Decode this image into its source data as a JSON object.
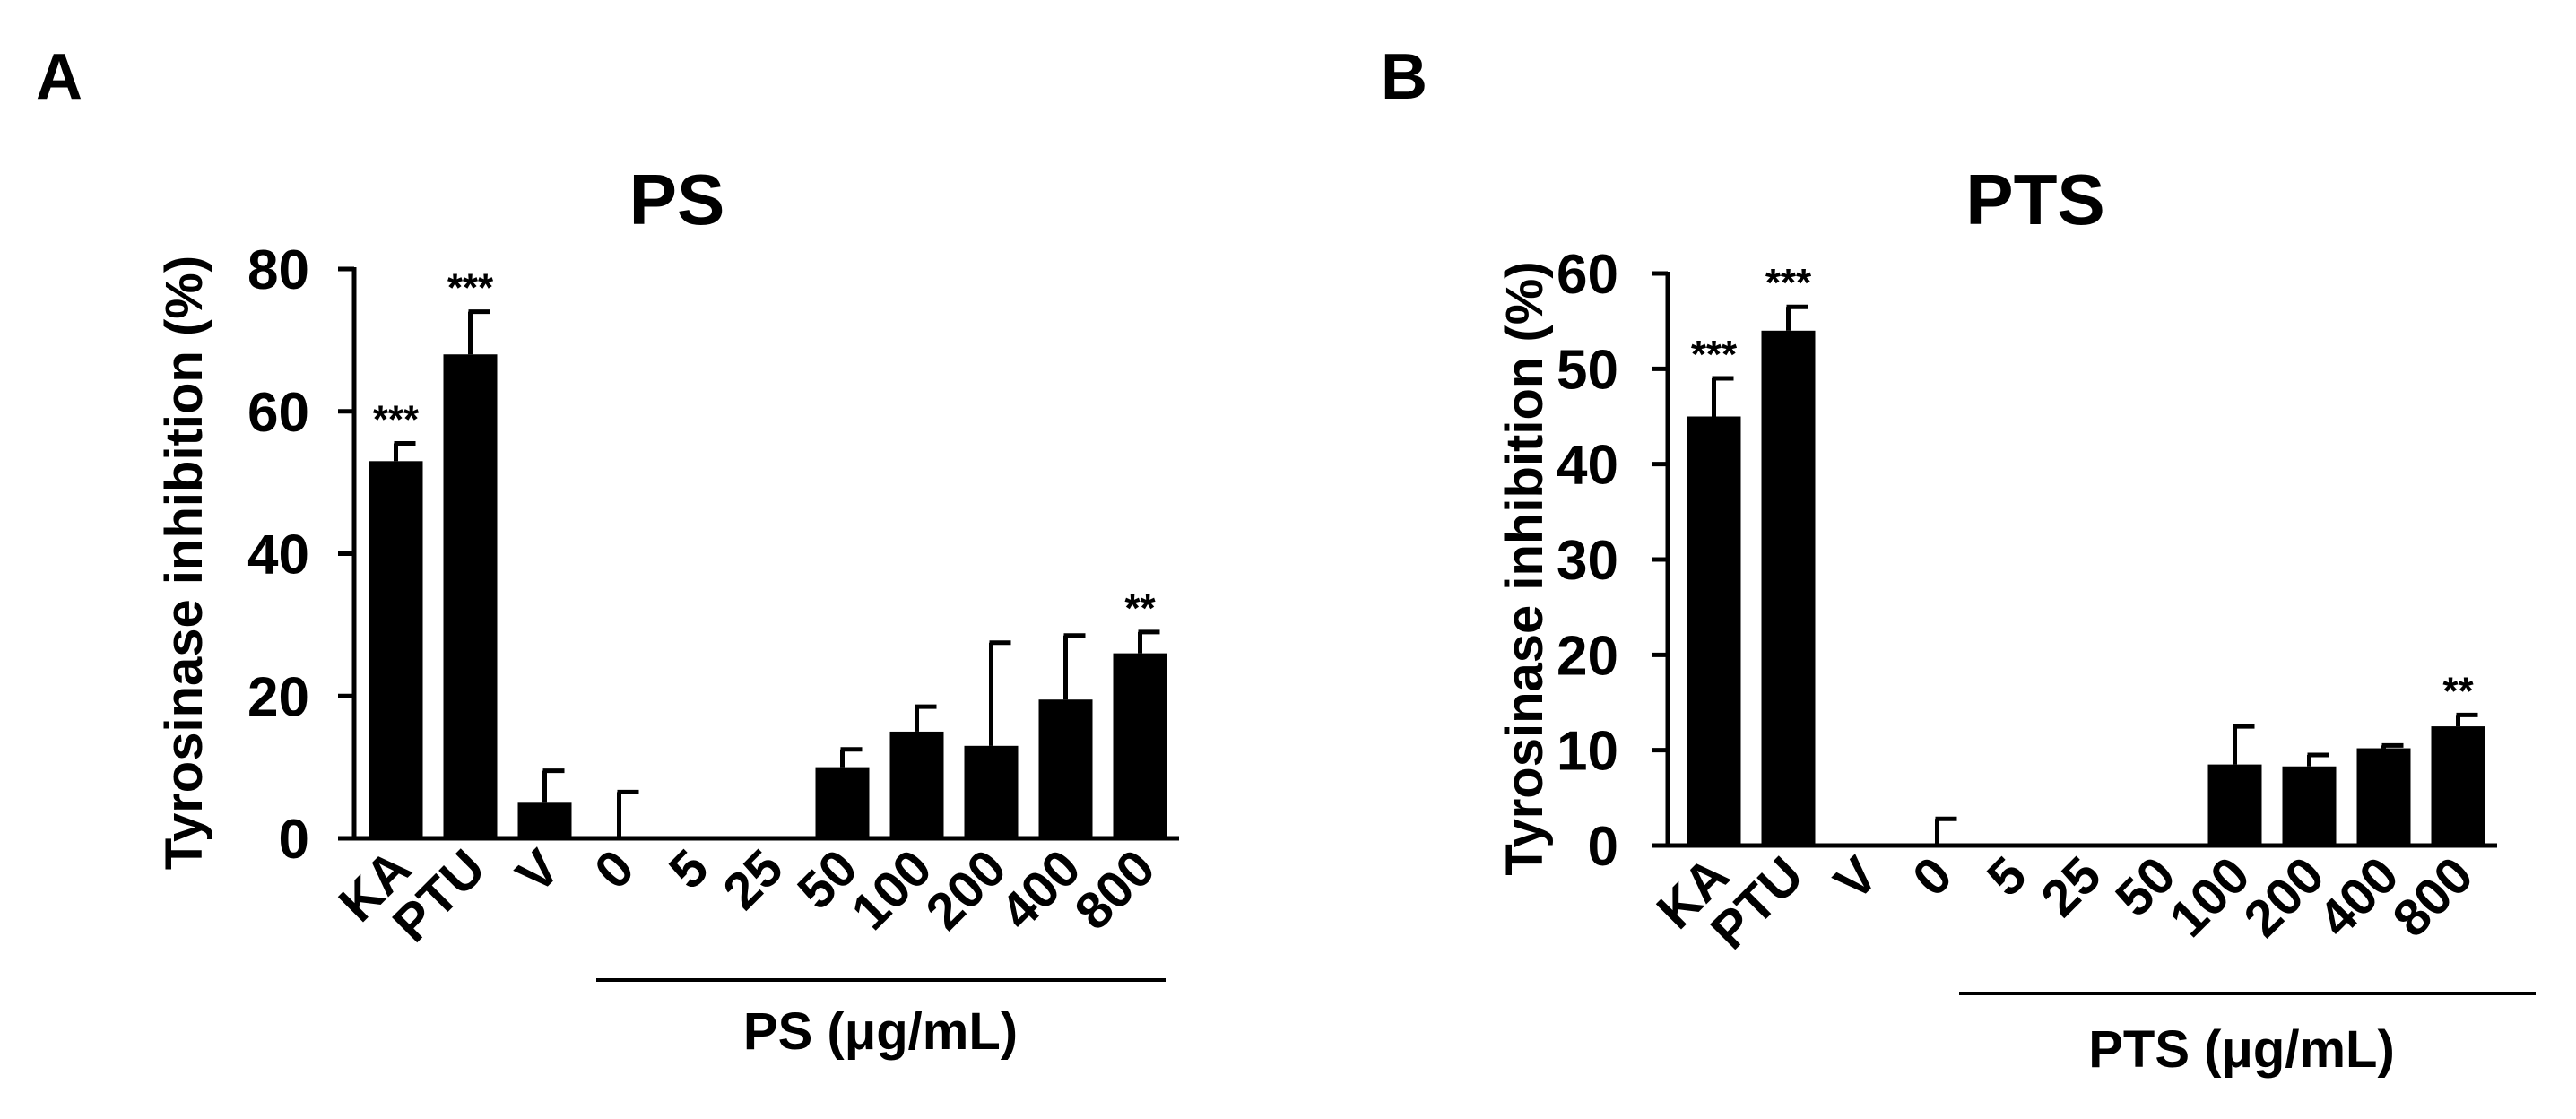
{
  "panels": [
    {
      "letter": "A",
      "chart_data": {
        "type": "bar",
        "title": "PS",
        "xlabel": "PS (μg/mL)",
        "ylabel": "Tyrosinase inhibition (%)",
        "ylim": [
          0,
          80
        ],
        "yticks": [
          "0",
          "20",
          "40",
          "60",
          "80"
        ],
        "categories": [
          "KA",
          "PTU",
          "V",
          "0",
          "5",
          "25",
          "50",
          "100",
          "200",
          "400",
          "800"
        ],
        "values": [
          53,
          68,
          5,
          0,
          0,
          0,
          10,
          15,
          13,
          19.5,
          26
        ],
        "errors": [
          2.5,
          6,
          4.5,
          6.5,
          0,
          0,
          2.5,
          3.5,
          14.5,
          9,
          3
        ],
        "significance": [
          "***",
          "***",
          "",
          "",
          "",
          "",
          "",
          "",
          "",
          "",
          "**"
        ],
        "group_label": "PS (μg/mL)"
      }
    },
    {
      "letter": "B",
      "chart_data": {
        "type": "bar",
        "title": "PTS",
        "xlabel": "PTS (μg/mL)",
        "ylabel": "Tyrosinase inhibition (%)",
        "ylim": [
          0,
          60
        ],
        "yticks": [
          "0",
          "10",
          "20",
          "30",
          "40",
          "50",
          "60"
        ],
        "categories": [
          "KA",
          "PTU",
          "V",
          "0",
          "5",
          "25",
          "50",
          "100",
          "200",
          "400",
          "800"
        ],
        "values": [
          45,
          54,
          0,
          0,
          0,
          0,
          0,
          8.5,
          8.3,
          10.2,
          12.5
        ],
        "errors": [
          4,
          2.5,
          0,
          2.8,
          0,
          0,
          0,
          4,
          1.2,
          0.3,
          1.2
        ],
        "significance": [
          "***",
          "***",
          "",
          "",
          "",
          "",
          "",
          "",
          "",
          "",
          "**"
        ],
        "group_label": "PTS (μg/mL)"
      }
    }
  ]
}
